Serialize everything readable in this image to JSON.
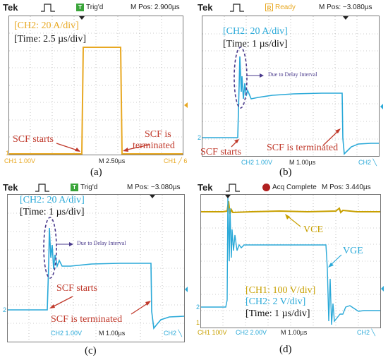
{
  "panels": {
    "a": {
      "brand": "Tek",
      "status": "Trig'd",
      "mpos": "M Pos: 2.900µs",
      "ch2_scale": "[CH2: 20 A/div]",
      "time_scale": "[Time:  2.5 µs/div]",
      "scf_starts": "SCF starts",
      "scf_term_1": "SCF is",
      "scf_term_2": "terminated",
      "footer_ch1": "CH1  1.00V",
      "footer_m": "M 2.50µs",
      "footer_trig": "CH1 ╱ 6",
      "caption": "(a)"
    },
    "b": {
      "brand": "Tek",
      "status": "Ready",
      "mpos": "M Pos: −3.080µs",
      "ch2_scale": "[CH2: 20 A/div]",
      "time_scale": "[Time:  1 µs/div]",
      "delay_label": "Due to Delay Interval",
      "scf_starts": "SCF starts",
      "scf_term": "SCF is terminated",
      "footer_ch2": "CH2  1.00V",
      "footer_m": "M 1.00µs",
      "footer_trig": "CH2 ╲",
      "caption": "(b)"
    },
    "c": {
      "brand": "Tek",
      "status": "Trig'd",
      "mpos": "M Pos: −3.080µs",
      "ch2_scale": "[CH2: 20 A/div]",
      "time_scale": "[Time:  1 µs/div]",
      "delay_label": "Due to Delay Interval",
      "scf_starts": "SCF starts",
      "scf_term": "SCF is terminated",
      "footer_ch2": "CH2  1.00V",
      "footer_m": "M 1.00µs",
      "footer_trig": "CH2 ╲",
      "caption": "(c)"
    },
    "d": {
      "brand": "Tek",
      "status": "Acq Complete",
      "mpos": "M Pos: 3.440µs",
      "vce_label": "VCE",
      "vge_label": "VGE",
      "ch1_scale": "[CH1: 100 V/div]",
      "ch2_scale": "[CH2: 2 V/div]",
      "time_scale": "[Time:  1 µs/div]",
      "footer_ch1": "CH1  100V",
      "footer_ch2": "CH2  2.00V",
      "footer_m": "M 1.00µs",
      "footer_trig": "CH2 ╲",
      "caption": "(d)"
    }
  },
  "colors": {
    "ch1_trace": "#e8a822",
    "ch2_trace": "#2aa9d8",
    "annotation_red": "#c0392b",
    "delay_ellipse": "#4a3a8c",
    "grid": "#9a9a9a",
    "ch1_text": "#e8a822",
    "ch2_text": "#2aa9d8"
  }
}
